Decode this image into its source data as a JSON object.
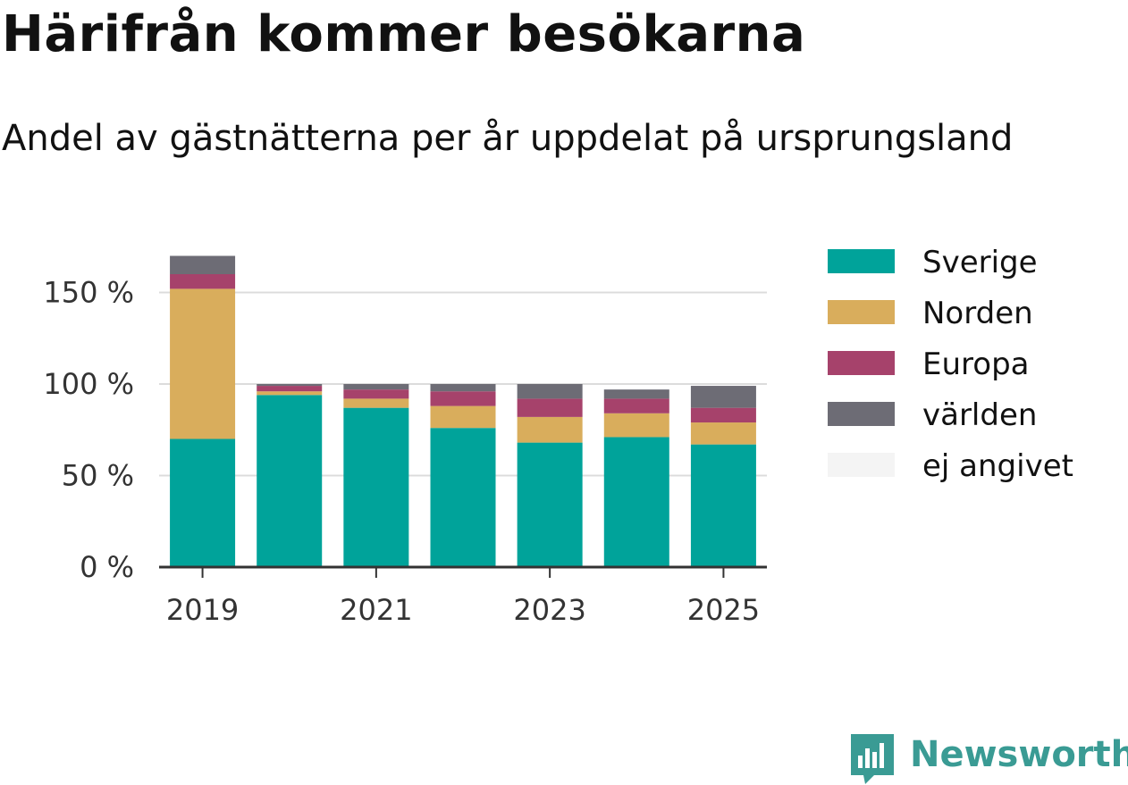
{
  "header": {
    "title": "Härifrån kommer besökarna",
    "subtitle": "Andel av gästnätterna per år uppdelat på ursprungsland"
  },
  "brand": {
    "name": "Newsworthy",
    "icon": "newsworthy-logo-icon",
    "color": "#3a9b94"
  },
  "chart_data": {
    "type": "bar",
    "stacked": true,
    "categories": [
      "2019",
      "2020",
      "2021",
      "2022",
      "2023",
      "2024",
      "2025"
    ],
    "x_tick_labels": [
      "2019",
      "2021",
      "2023",
      "2025"
    ],
    "series": [
      {
        "name": "Sverige",
        "color": "#00a39a",
        "values": [
          70,
          94,
          87,
          76,
          68,
          71,
          67
        ]
      },
      {
        "name": "Norden",
        "color": "#d9ad5c",
        "values": [
          82,
          2,
          5,
          12,
          14,
          13,
          12
        ]
      },
      {
        "name": "Europa",
        "color": "#a6426b",
        "values": [
          8,
          3,
          5,
          8,
          10,
          8,
          8
        ]
      },
      {
        "name": "världen",
        "color": "#6d6c75",
        "values": [
          10,
          1,
          3,
          4,
          8,
          5,
          12
        ]
      },
      {
        "name": "ej angivet",
        "color": "#f4f4f4",
        "values": [
          0,
          0,
          0,
          0,
          0,
          0,
          0
        ]
      }
    ],
    "y_ticks": [
      {
        "value": 0,
        "label": "0 %"
      },
      {
        "value": 50,
        "label": "50 %"
      },
      {
        "value": 100,
        "label": "100 %"
      },
      {
        "value": 150,
        "label": "150 %"
      }
    ],
    "ylim": [
      0,
      170
    ],
    "grid": true,
    "legend_position": "right"
  }
}
